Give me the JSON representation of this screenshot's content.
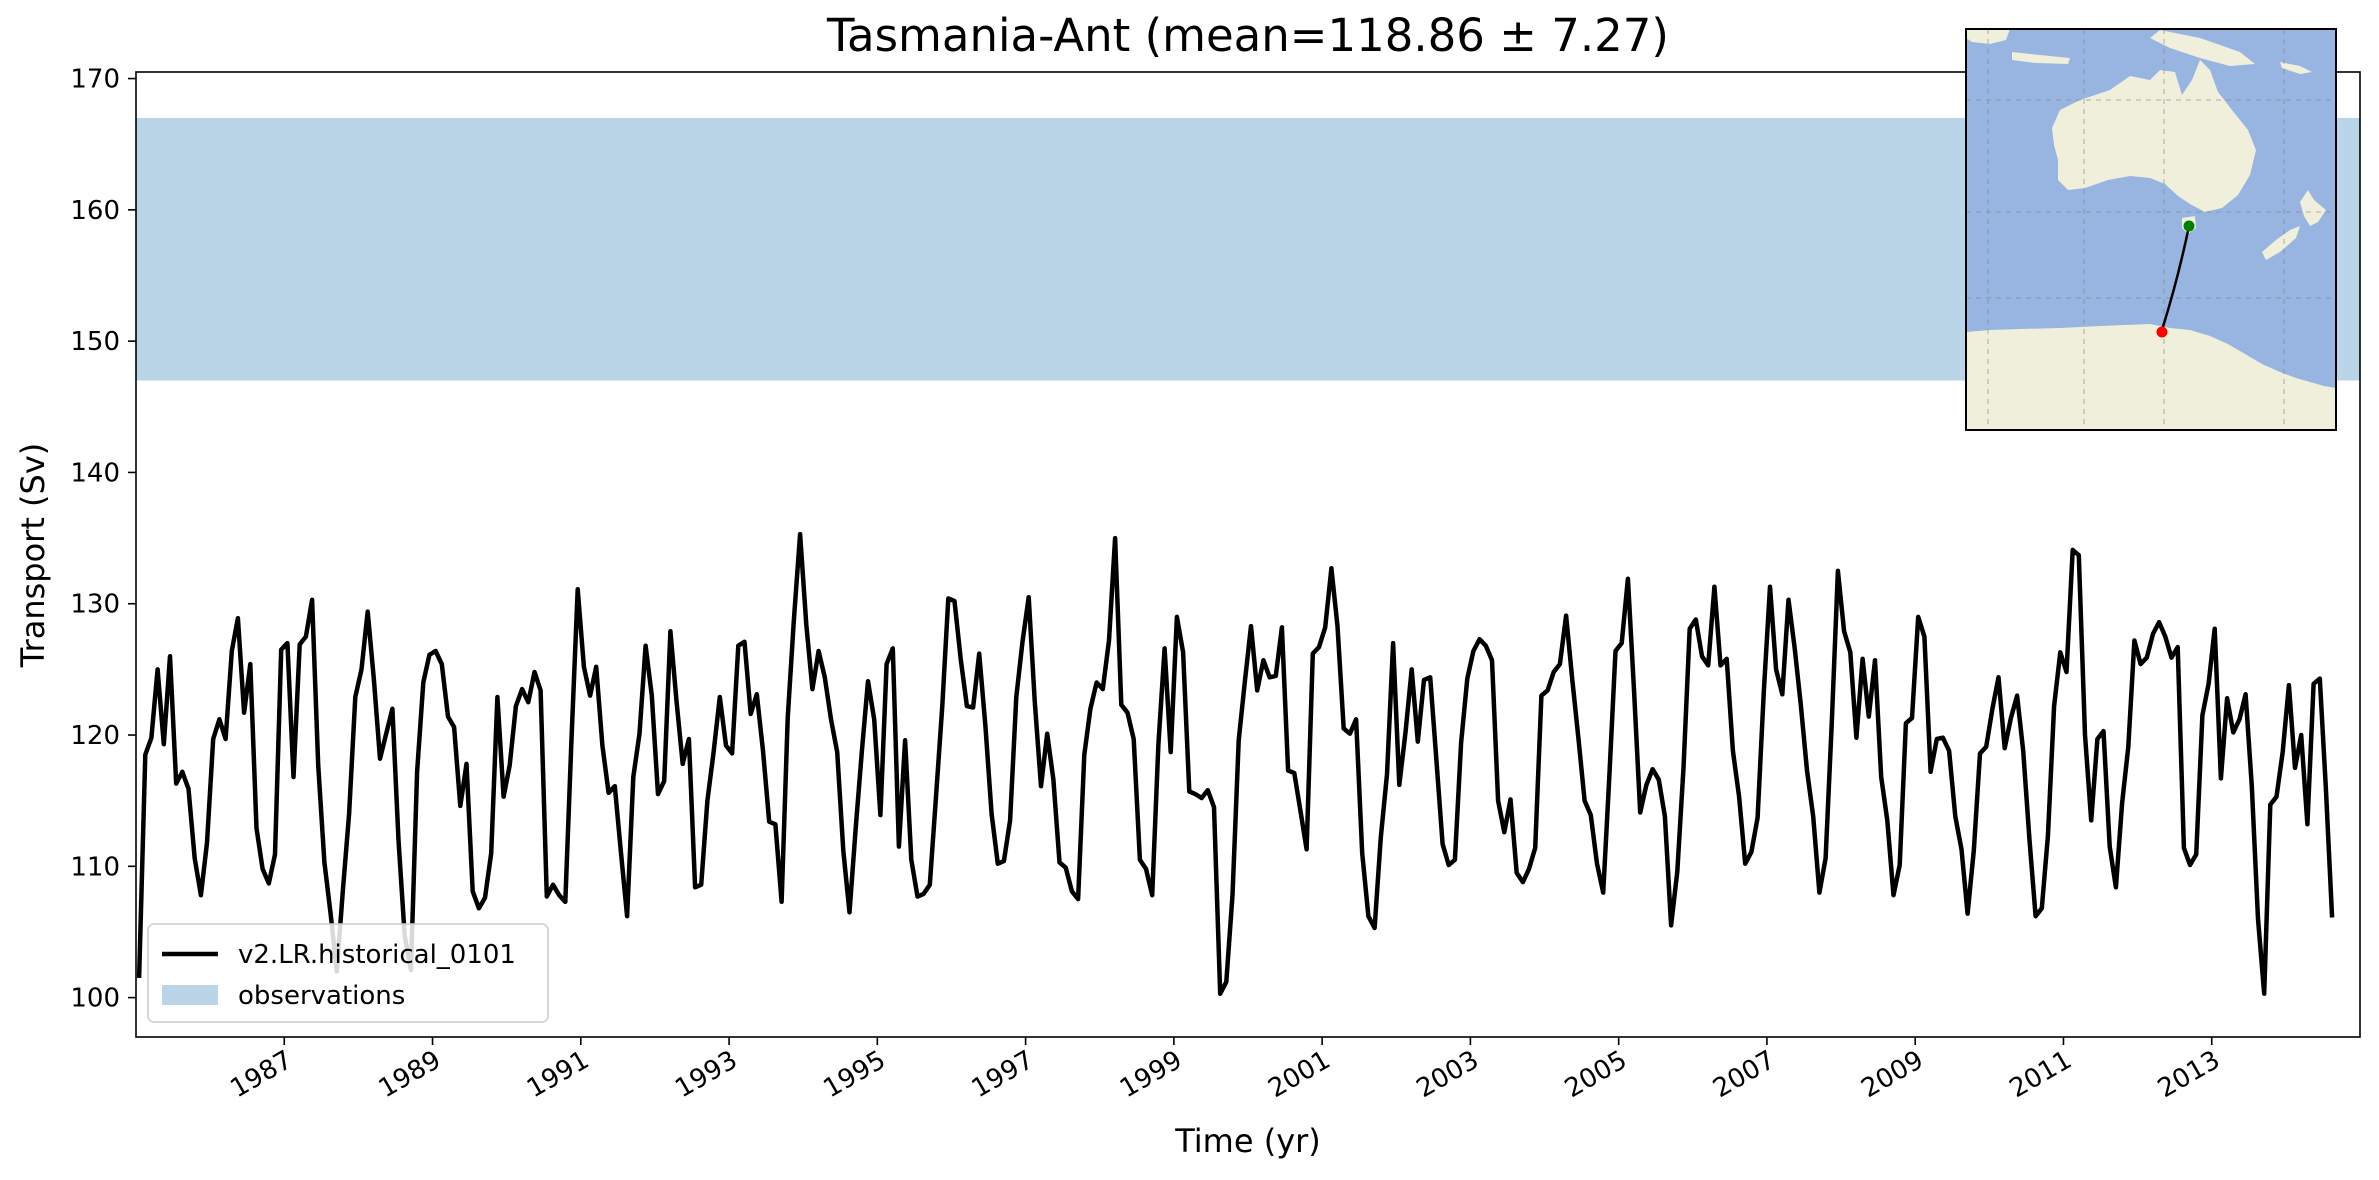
{
  "chart_data": {
    "type": "line",
    "title": "Tasmania-Ant (mean=118.86 ± 7.27)",
    "xlabel": "Time (yr)",
    "ylabel": "Transport (Sv)",
    "xlim": [
      1985.0,
      2015.0
    ],
    "ylim": [
      97,
      170.5
    ],
    "x_ticks": [
      1987,
      1989,
      1991,
      1993,
      1995,
      1997,
      1999,
      2001,
      2003,
      2005,
      2007,
      2009,
      2011,
      2013
    ],
    "x_tick_labels": [
      "1987",
      "1989",
      "1991",
      "1993",
      "1995",
      "1997",
      "1999",
      "2001",
      "2003",
      "2005",
      "2007",
      "2009",
      "2011",
      "2013"
    ],
    "y_ticks": [
      100,
      110,
      120,
      130,
      140,
      150,
      160,
      170
    ],
    "y_tick_labels": [
      "100",
      "110",
      "120",
      "130",
      "140",
      "150",
      "160",
      "170"
    ],
    "grid": false,
    "legend_position": "lower-left",
    "observations": {
      "name": "observations",
      "range": [
        147,
        167
      ],
      "color": "#bad5e8"
    },
    "series": [
      {
        "name": "v2.LR.historical_0101",
        "color": "#000000",
        "x_start": 1985.0417,
        "step": 0.08333,
        "values": [
          101.5,
          118.5,
          119.8,
          125.0,
          119.3,
          126.0,
          116.3,
          117.2,
          115.9,
          110.6,
          107.8,
          111.8,
          119.7,
          121.2,
          119.7,
          126.4,
          128.9,
          121.7,
          125.4,
          112.9,
          109.8,
          108.7,
          110.9,
          126.5,
          127.0,
          116.8,
          126.9,
          127.5,
          130.3,
          117.7,
          110.3,
          106.4,
          102.0,
          108.2,
          114.0,
          122.9,
          125.0,
          129.4,
          124.3,
          118.2,
          120.1,
          122.0,
          112.0,
          104.7,
          102.1,
          117.2,
          124.0,
          126.1,
          126.4,
          125.4,
          121.4,
          120.6,
          114.6,
          117.8,
          108.1,
          106.8,
          107.6,
          111.0,
          122.9,
          115.3,
          117.7,
          122.2,
          123.5,
          122.5,
          124.8,
          123.4,
          107.7,
          108.6,
          107.8,
          107.3,
          119.7,
          131.1,
          125.2,
          123.0,
          125.2,
          119.2,
          115.6,
          116.1,
          111.1,
          106.2,
          116.8,
          120.1,
          126.8,
          123.0,
          115.5,
          116.5,
          127.9,
          122.6,
          117.8,
          119.7,
          108.4,
          108.6,
          115.0,
          118.7,
          122.9,
          119.2,
          118.6,
          126.8,
          127.1,
          121.6,
          123.1,
          118.8,
          113.4,
          113.2,
          107.3,
          121.3,
          128.8,
          135.3,
          128.4,
          123.5,
          126.4,
          124.4,
          121.2,
          118.7,
          111.2,
          106.5,
          112.9,
          118.8,
          124.1,
          121.2,
          113.9,
          125.4,
          126.6,
          111.5,
          119.6,
          110.5,
          107.7,
          107.9,
          108.6,
          115.3,
          122.1,
          130.4,
          130.2,
          125.8,
          122.2,
          122.1,
          126.2,
          120.7,
          114.0,
          110.2,
          110.4,
          113.5,
          122.9,
          127.1,
          130.5,
          122.5,
          116.1,
          120.1,
          116.6,
          110.3,
          109.9,
          108.1,
          107.5,
          118.5,
          122.0,
          124.0,
          123.5,
          127.2,
          135.0,
          122.3,
          121.7,
          119.7,
          110.5,
          109.8,
          107.8,
          119.3,
          126.6,
          118.7,
          129.0,
          126.3,
          115.7,
          115.5,
          115.2,
          115.8,
          114.5,
          100.3,
          101.2,
          107.8,
          119.6,
          124.1,
          128.3,
          123.4,
          125.7,
          124.4,
          124.5,
          128.2,
          117.3,
          117.1,
          114.2,
          111.3,
          126.2,
          126.7,
          128.2,
          132.7,
          128.3,
          120.5,
          120.1,
          121.2,
          111.0,
          106.2,
          105.3,
          112.2,
          117.0,
          127.0,
          116.2,
          120.2,
          125.0,
          119.5,
          124.2,
          124.4,
          118.1,
          111.7,
          110.1,
          110.5,
          119.4,
          124.3,
          126.4,
          127.3,
          126.8,
          125.7,
          115.0,
          112.6,
          115.1,
          109.5,
          108.8,
          109.8,
          111.4,
          123.0,
          123.4,
          124.8,
          125.4,
          129.1,
          124.2,
          119.7,
          115.0,
          113.9,
          110.2,
          108.0,
          116.8,
          126.4,
          127.0,
          131.9,
          123.3,
          114.1,
          116.2,
          117.4,
          116.6,
          113.8,
          105.5,
          109.6,
          117.5,
          128.1,
          128.8,
          126.0,
          125.3,
          131.3,
          125.3,
          125.8,
          118.8,
          115.3,
          110.2,
          111.1,
          113.7,
          123.3,
          131.3,
          125.0,
          123.1,
          130.3,
          126.6,
          122.3,
          117.3,
          113.8,
          108.0,
          110.6,
          120.8,
          132.5,
          127.9,
          126.3,
          119.8,
          125.8,
          121.4,
          125.7,
          116.8,
          113.5,
          107.8,
          110.1,
          120.9,
          121.3,
          129.0,
          127.5,
          117.2,
          119.7,
          119.8,
          118.8,
          113.8,
          111.3,
          106.4,
          111.2,
          118.6,
          119.1,
          122.0,
          124.4,
          119.0,
          121.3,
          123.0,
          118.8,
          112.1,
          106.2,
          106.8,
          112.3,
          122.2,
          126.3,
          124.8,
          134.1,
          133.7,
          120.0,
          113.5,
          119.7,
          120.3,
          111.5,
          108.4,
          114.8,
          119.1,
          127.2,
          125.4,
          125.9,
          127.7,
          128.6,
          127.5,
          125.9,
          126.7,
          111.4,
          110.1,
          110.9,
          121.5,
          123.9,
          128.1,
          116.7,
          122.8,
          120.2,
          121.2,
          123.1,
          116.1,
          106.0,
          100.3,
          114.7,
          115.3,
          118.7,
          123.8,
          117.5,
          120.0,
          113.2,
          123.9,
          124.3,
          115.9,
          106.1
        ]
      }
    ],
    "inset_map": {
      "projection": "lon-lat",
      "lon_range": [
        98,
        192
      ],
      "lat_range": [
        -75,
        -2
      ],
      "land_color": "#efefdc",
      "ocean_color": "#98b4e0",
      "section_start": {
        "lon": 146.8,
        "lat": -43.9,
        "color": "#008000"
      },
      "section_end": {
        "lon": 143.5,
        "lat": -66.0,
        "color": "#ff0000"
      }
    }
  }
}
